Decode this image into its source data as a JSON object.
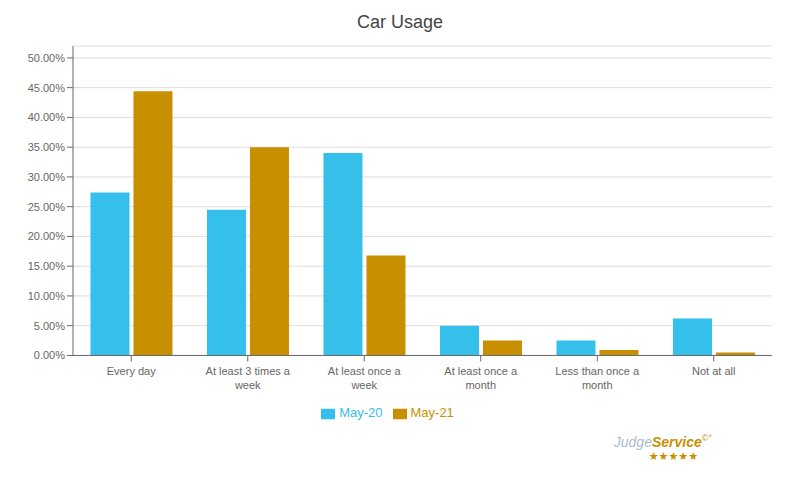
{
  "chart_data": {
    "type": "bar",
    "title": "Car Usage",
    "categories": [
      "Every day",
      "At least 3 times a\nweek",
      "At least once a\nweek",
      "At least once a\nmonth",
      "Less than once a\nmonth",
      "Not at all"
    ],
    "series": [
      {
        "name": "May-20",
        "color": "#35C0EC",
        "values": [
          0.274,
          0.245,
          0.34,
          0.05,
          0.025,
          0.062
        ]
      },
      {
        "name": "May-21",
        "color": "#C89000",
        "values": [
          0.444,
          0.35,
          0.168,
          0.025,
          0.009,
          0.005
        ]
      }
    ],
    "ylim": [
      0,
      0.52
    ],
    "yticks": [
      {
        "value": 0.0,
        "label": "0.00%"
      },
      {
        "value": 0.05,
        "label": "5.00%"
      },
      {
        "value": 0.1,
        "label": "10.00%"
      },
      {
        "value": 0.15,
        "label": "15.00%"
      },
      {
        "value": 0.2,
        "label": "20.00%"
      },
      {
        "value": 0.25,
        "label": "25.00%"
      },
      {
        "value": 0.3,
        "label": "30.00%"
      },
      {
        "value": 0.35,
        "label": "35.00%"
      },
      {
        "value": 0.4,
        "label": "40.00%"
      },
      {
        "value": 0.45,
        "label": "45.00%"
      },
      {
        "value": 0.5,
        "label": "50.00%"
      }
    ],
    "grid": true,
    "legend": "bottom",
    "annotations": [
      {
        "text": "Judge",
        "color": "#AABBCC"
      },
      {
        "text": "Service",
        "color": "#C89000"
      },
      {
        "text": "©°",
        "color": "#C89000"
      },
      {
        "text": "★★★★★",
        "color": "#C89000"
      }
    ]
  }
}
